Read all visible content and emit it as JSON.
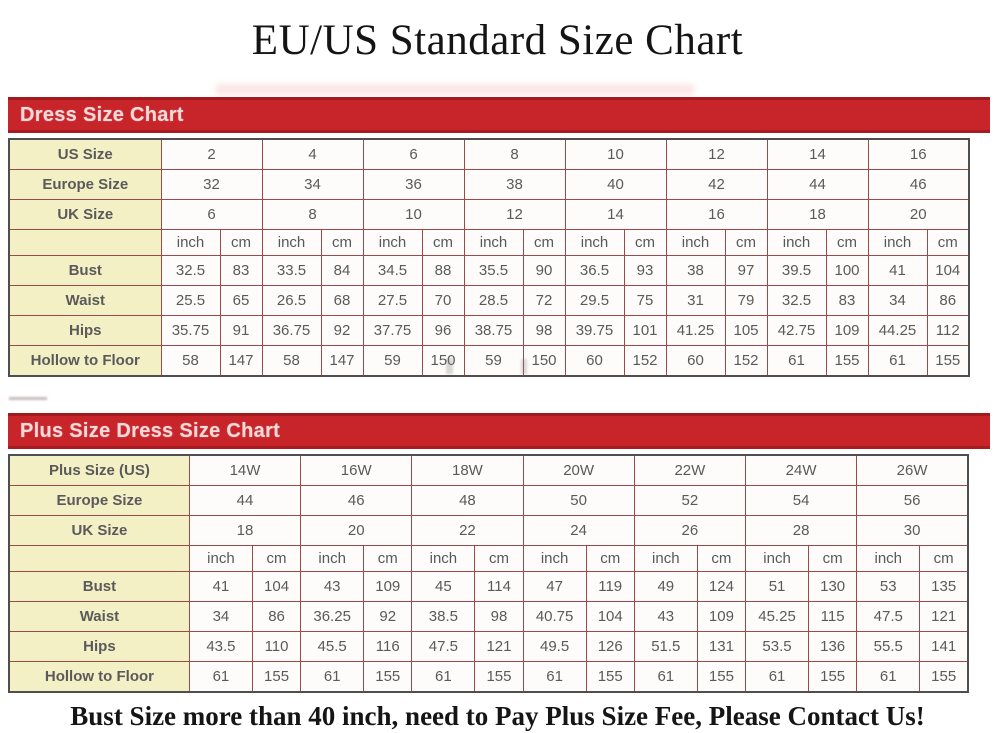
{
  "page": {
    "title": "EU/US Standard Size Chart"
  },
  "footer": {
    "text": "Bust Size more than 40 inch, need to Pay Plus Size Fee, Please Contact Us!"
  },
  "colors": {
    "header_bar_red": "#C8252B",
    "header_bar_edge": "#A2191E",
    "header_text_pink": "#F3D9D8",
    "label_cell_cream": "#F4F0C5",
    "cell_white": "#FDFCFB",
    "inner_border": "#9A4A49",
    "outer_border": "#4F4F4F",
    "value_text": "#5A5A5A",
    "title_text": "#141414"
  },
  "tables": [
    {
      "title": "Dress Size Chart",
      "size_rows": [
        {
          "label": "US Size",
          "values": [
            "2",
            "4",
            "6",
            "8",
            "10",
            "12",
            "14",
            "16"
          ]
        },
        {
          "label": "Europe Size",
          "values": [
            "32",
            "34",
            "36",
            "38",
            "40",
            "42",
            "44",
            "46"
          ]
        },
        {
          "label": "UK Size",
          "values": [
            "6",
            "8",
            "10",
            "12",
            "14",
            "16",
            "18",
            "20"
          ]
        }
      ],
      "unit_headers": [
        "inch",
        "cm"
      ],
      "measure_rows": [
        {
          "label": "Bust",
          "inch": [
            "32.5",
            "33.5",
            "34.5",
            "35.5",
            "36.5",
            "38",
            "39.5",
            "41"
          ],
          "cm": [
            "83",
            "84",
            "88",
            "90",
            "93",
            "97",
            "100",
            "104"
          ]
        },
        {
          "label": "Waist",
          "inch": [
            "25.5",
            "26.5",
            "27.5",
            "28.5",
            "29.5",
            "31",
            "32.5",
            "34"
          ],
          "cm": [
            "65",
            "68",
            "70",
            "72",
            "75",
            "79",
            "83",
            "86"
          ]
        },
        {
          "label": "Hips",
          "inch": [
            "35.75",
            "36.75",
            "37.75",
            "38.75",
            "39.75",
            "41.25",
            "42.75",
            "44.25"
          ],
          "cm": [
            "91",
            "92",
            "96",
            "98",
            "101",
            "105",
            "109",
            "112"
          ]
        },
        {
          "label": "Hollow to Floor",
          "inch": [
            "58",
            "58",
            "59",
            "59",
            "60",
            "60",
            "61",
            "61"
          ],
          "cm": [
            "147",
            "147",
            "150",
            "150",
            "152",
            "152",
            "155",
            "155"
          ]
        }
      ]
    },
    {
      "title": "Plus Size Dress Size Chart",
      "size_rows": [
        {
          "label": "Plus Size (US)",
          "values": [
            "14W",
            "16W",
            "18W",
            "20W",
            "22W",
            "24W",
            "26W"
          ]
        },
        {
          "label": "Europe Size",
          "values": [
            "44",
            "46",
            "48",
            "50",
            "52",
            "54",
            "56"
          ]
        },
        {
          "label": "UK Size",
          "values": [
            "18",
            "20",
            "22",
            "24",
            "26",
            "28",
            "30"
          ]
        }
      ],
      "unit_headers": [
        "inch",
        "cm"
      ],
      "measure_rows": [
        {
          "label": "Bust",
          "inch": [
            "41",
            "43",
            "45",
            "47",
            "49",
            "51",
            "53"
          ],
          "cm": [
            "104",
            "109",
            "114",
            "119",
            "124",
            "130",
            "135"
          ]
        },
        {
          "label": "Waist",
          "inch": [
            "34",
            "36.25",
            "38.5",
            "40.75",
            "43",
            "45.25",
            "47.5"
          ],
          "cm": [
            "86",
            "92",
            "98",
            "104",
            "109",
            "115",
            "121"
          ]
        },
        {
          "label": "Hips",
          "inch": [
            "43.5",
            "45.5",
            "47.5",
            "49.5",
            "51.5",
            "53.5",
            "55.5"
          ],
          "cm": [
            "110",
            "116",
            "121",
            "126",
            "131",
            "136",
            "141"
          ]
        },
        {
          "label": "Hollow to Floor",
          "inch": [
            "61",
            "61",
            "61",
            "61",
            "61",
            "61",
            "61"
          ],
          "cm": [
            "155",
            "155",
            "155",
            "155",
            "155",
            "155",
            "155"
          ]
        }
      ]
    }
  ]
}
